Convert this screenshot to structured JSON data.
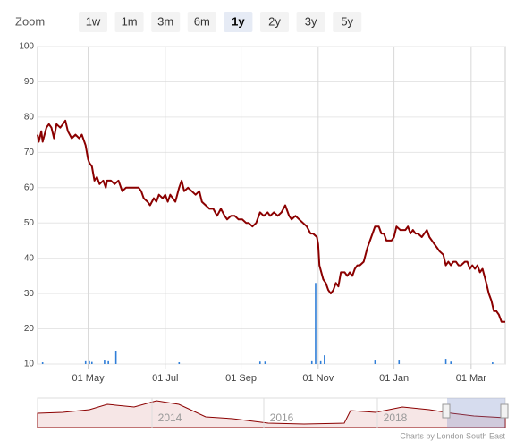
{
  "chart_data": {
    "type": "line",
    "zoom": {
      "label": "Zoom",
      "buttons": [
        "1w",
        "1m",
        "3m",
        "6m",
        "1y",
        "2y",
        "3y",
        "5y"
      ],
      "selected": 4
    },
    "xlim": [
      0,
      370
    ],
    "xticks": [
      {
        "value": 40,
        "label": "01 May"
      },
      {
        "value": 101,
        "label": "01 Jul"
      },
      {
        "value": 161,
        "label": "01 Sep"
      },
      {
        "value": 222,
        "label": "01 Nov"
      },
      {
        "value": 282,
        "label": "01 Jan"
      },
      {
        "value": 343,
        "label": "01 Mar"
      }
    ],
    "ylim": [
      10,
      100
    ],
    "yticks": [
      10,
      20,
      30,
      40,
      50,
      60,
      70,
      80,
      90,
      100
    ],
    "grid": true,
    "series": [
      {
        "color": "#8b0000",
        "x": [
          0,
          1,
          3,
          4,
          7,
          9,
          11,
          13,
          15,
          18,
          20,
          22,
          24,
          27,
          30,
          33,
          35,
          38,
          40,
          41,
          43,
          45,
          47,
          49,
          52,
          54,
          55,
          58,
          61,
          64,
          67,
          70,
          73,
          77,
          80,
          82,
          84,
          87,
          89,
          92,
          94,
          96,
          99,
          101,
          103,
          105,
          107,
          109,
          112,
          114,
          116,
          119,
          122,
          125,
          128,
          130,
          133,
          136,
          139,
          142,
          145,
          148,
          150,
          153,
          156,
          159,
          162,
          165,
          167,
          170,
          173,
          176,
          179,
          182,
          184,
          187,
          190,
          193,
          196,
          199,
          201,
          204,
          207,
          210,
          213,
          216,
          218,
          221,
          222,
          223,
          226,
          228,
          230,
          232,
          234,
          236,
          238,
          240,
          243,
          245,
          247,
          249,
          251,
          253,
          255,
          258,
          261,
          263,
          265,
          267,
          270,
          272,
          274,
          276,
          278,
          280,
          282,
          284,
          287,
          289,
          291,
          293,
          295,
          297,
          299,
          301,
          304,
          306,
          308,
          310,
          312,
          314,
          316,
          318,
          321,
          323,
          325,
          327,
          329,
          331,
          333,
          335,
          338,
          340,
          342,
          344,
          346,
          348,
          350,
          352,
          355,
          357,
          359,
          361,
          363,
          365,
          367,
          370
        ],
        "values": [
          75,
          73,
          76,
          73,
          77,
          78,
          77,
          74,
          78,
          77,
          78,
          79,
          76,
          74,
          75,
          74,
          75,
          72,
          68,
          67,
          66,
          62,
          63,
          61,
          62,
          60,
          62,
          62,
          61,
          62,
          59,
          60,
          60,
          60,
          60,
          59,
          57,
          56,
          55,
          57,
          56,
          58,
          57,
          58,
          56,
          58,
          57,
          56,
          60,
          62,
          59,
          60,
          59,
          58,
          59,
          56,
          55,
          54,
          54,
          52,
          54,
          52,
          51,
          52,
          52,
          51,
          51,
          50,
          50,
          49,
          50,
          53,
          52,
          53,
          52,
          53,
          52,
          53,
          55,
          52,
          51,
          52,
          51,
          50,
          49,
          47,
          47,
          46,
          44,
          38,
          34,
          33,
          31,
          30,
          31,
          33,
          32,
          36,
          36,
          35,
          36,
          35,
          37,
          38,
          38,
          39,
          43,
          45,
          47,
          49,
          49,
          47,
          47,
          45,
          45,
          45,
          46,
          49,
          48,
          48,
          48,
          49,
          47,
          48,
          47,
          47,
          46,
          47,
          48,
          46,
          45,
          44,
          43,
          42,
          41,
          38,
          39,
          38,
          39,
          39,
          38,
          38,
          39,
          39,
          37,
          38,
          37,
          38,
          36,
          37,
          33,
          30,
          28,
          25,
          25,
          24,
          22,
          22
        ]
      }
    ],
    "volume": {
      "color": "#2f7ed8",
      "x": [
        4,
        38,
        41,
        43,
        53,
        56,
        62,
        112,
        176,
        180,
        217,
        220,
        224,
        227,
        267,
        286,
        323,
        327,
        360
      ],
      "values": [
        10.5,
        10.8,
        10.8,
        10.6,
        11,
        10.8,
        13.8,
        10.5,
        10.7,
        10.7,
        10.8,
        33,
        10.8,
        12.5,
        11,
        11,
        11.5,
        10.7,
        10.5
      ]
    },
    "navigator": {
      "labels": [
        "2014",
        "2016",
        "2018"
      ]
    },
    "credits": "Charts by London South East"
  }
}
